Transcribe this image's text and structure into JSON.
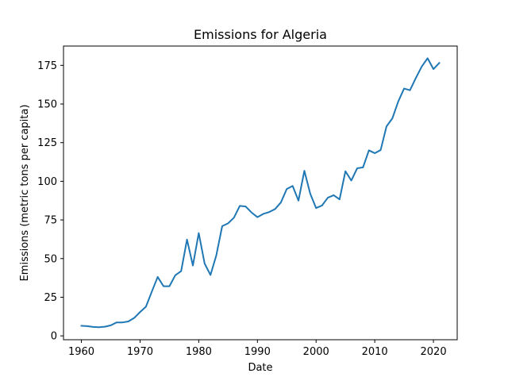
{
  "chart_data": {
    "type": "line",
    "title": "Emissions for Algeria",
    "xlabel": "Date",
    "ylabel": "Emissions (metric tons per capita)",
    "xlim": [
      1956.95,
      2024.05
    ],
    "ylim": [
      -2.5,
      187.5
    ],
    "x_ticks": [
      1960,
      1970,
      1980,
      1990,
      2000,
      2010,
      2020
    ],
    "y_ticks": [
      0,
      25,
      50,
      75,
      100,
      125,
      150,
      175
    ],
    "grid": false,
    "legend": "none",
    "series": [
      {
        "color": "#1f77b4",
        "x": [
          1960,
          1961,
          1962,
          1963,
          1964,
          1965,
          1966,
          1967,
          1968,
          1969,
          1970,
          1971,
          1972,
          1973,
          1974,
          1975,
          1976,
          1977,
          1978,
          1979,
          1980,
          1981,
          1982,
          1983,
          1984,
          1985,
          1986,
          1987,
          1988,
          1989,
          1990,
          1991,
          1992,
          1993,
          1994,
          1995,
          1996,
          1997,
          1998,
          1999,
          2000,
          2001,
          2002,
          2003,
          2004,
          2005,
          2006,
          2007,
          2008,
          2009,
          2010,
          2011,
          2012,
          2013,
          2014,
          2015,
          2016,
          2017,
          2018,
          2019,
          2020,
          2021
        ],
        "values": [
          6.5,
          6.3,
          5.8,
          5.6,
          5.9,
          6.8,
          8.7,
          8.7,
          9.3,
          11.6,
          15.4,
          18.9,
          28.6,
          38.1,
          32.1,
          32.1,
          39.2,
          41.9,
          62.3,
          45.5,
          66.5,
          46.8,
          39.4,
          52.2,
          71.0,
          72.8,
          76.5,
          84.1,
          83.7,
          79.8,
          76.8,
          78.9,
          80.1,
          82.0,
          86.3,
          95.0,
          97.0,
          87.5,
          106.8,
          92.0,
          82.7,
          84.3,
          89.4,
          91.0,
          88.3,
          106.5,
          100.5,
          108.4,
          109.0,
          120.0,
          118.2,
          120.2,
          135.5,
          140.7,
          151.6,
          160.0,
          158.9,
          166.8,
          174.2,
          179.6,
          172.6,
          176.6
        ]
      }
    ]
  }
}
